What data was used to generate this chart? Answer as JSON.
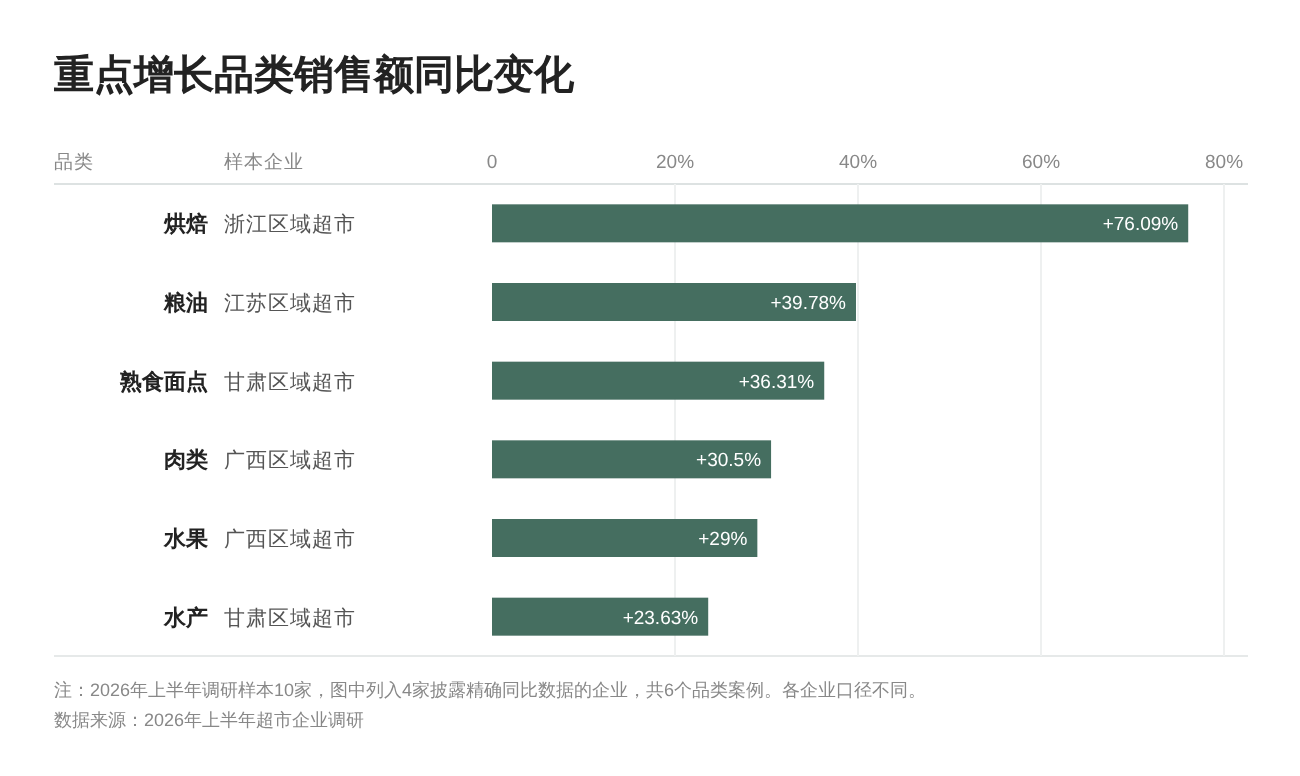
{
  "chart_data": {
    "type": "bar",
    "orientation": "horizontal",
    "title": "重点增长品类销售额同比变化",
    "ylabel": "品类",
    "y2label": "样本企业",
    "categories": [
      "烘焙",
      "粮油",
      "熟食面点",
      "肉类",
      "水果",
      "水产"
    ],
    "y2_categories": [
      "浙江区域超市",
      "江苏区域超市",
      "甘肃区域超市",
      "广西区域超市",
      "广西区域超市",
      "甘肃区域超市"
    ],
    "series": [
      {
        "color": "#456e60",
        "values": [
          76.09,
          39.78,
          36.31,
          30.5,
          29,
          23.63
        ],
        "value_labels": [
          "+76.09%",
          "+39.78%",
          "+36.31%",
          "+30.5%",
          "+29%",
          "+23.63%"
        ]
      }
    ],
    "x2lim": [
      0,
      80
    ],
    "x2ticks": [
      {
        "value": 0,
        "label": "0"
      },
      {
        "value": 20,
        "label": "20%"
      },
      {
        "value": 40,
        "label": "40%"
      },
      {
        "value": 60,
        "label": "60%"
      },
      {
        "value": 80,
        "label": "80%"
      }
    ],
    "grid": "x",
    "annotations": [
      "注：2026年上半年调研样本10家，图中列入4家披露精确同比数据的企业，共6个品类案例。各企业口径不同。",
      "数据来源：2026年上半年超市企业调研"
    ]
  }
}
